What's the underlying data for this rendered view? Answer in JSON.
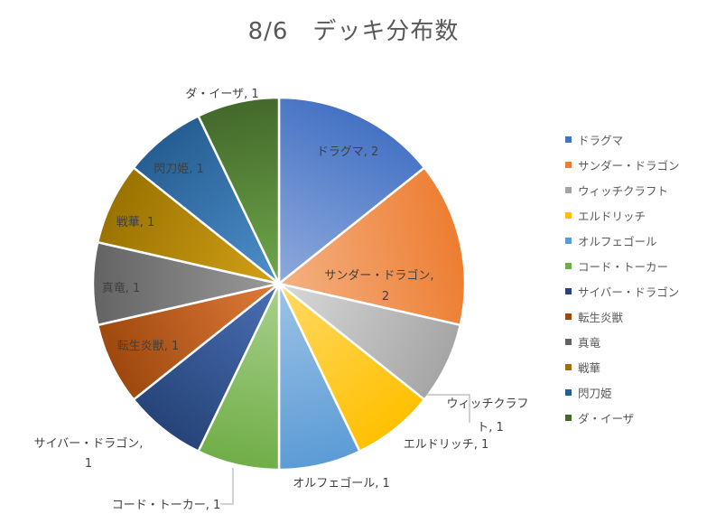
{
  "chart_data": {
    "type": "pie",
    "title": "8/6　デッキ分布数",
    "legend_position": "right",
    "slices": [
      {
        "name": "ドラグマ",
        "value": 2,
        "color": "#4472c4",
        "light": "#8faadc",
        "label": "ドラグマ, 2"
      },
      {
        "name": "サンダー・ドラゴン",
        "value": 2,
        "color": "#ed7d31",
        "light": "#f4b183",
        "label": "サンダー・ドラゴン,",
        "label2": "2"
      },
      {
        "name": "ウィッチクラフト",
        "value": 1,
        "color": "#a5a5a5",
        "light": "#d9d9d9",
        "label": "ウィッチクラフ",
        "label2": "ト, 1"
      },
      {
        "name": "エルドリッチ",
        "value": 1,
        "color": "#ffc000",
        "light": "#ffd966",
        "label": "エルドリッチ, 1"
      },
      {
        "name": "オルフェゴール",
        "value": 1,
        "color": "#5b9bd5",
        "light": "#9dc3e6",
        "label": "オルフェゴール, 1"
      },
      {
        "name": "コード・トーカー",
        "value": 1,
        "color": "#70ad47",
        "light": "#a9d18e",
        "label": "コード・トーカー, 1"
      },
      {
        "name": "サイバー・ドラゴン",
        "value": 1,
        "color": "#264478",
        "light": "#4a6fb5",
        "label": "サイバー・ドラゴン,",
        "label2": "1"
      },
      {
        "name": "転生炎獣",
        "value": 1,
        "color": "#9e480e",
        "light": "#e07b39",
        "label": "転生炎獣, 1"
      },
      {
        "name": "真竜",
        "value": 1,
        "color": "#636363",
        "light": "#9a9a9a",
        "label": "真竜, 1"
      },
      {
        "name": "戦華",
        "value": 1,
        "color": "#997300",
        "light": "#d4a017",
        "label": "戦華, 1"
      },
      {
        "name": "閃刀姫",
        "value": 1,
        "color": "#255e91",
        "light": "#4f8fcc",
        "label": "閃刀姫, 1"
      },
      {
        "name": "ダ・イーザ",
        "value": 1,
        "color": "#43682b",
        "light": "#6fa84a",
        "label": "ダ・イーザ, 1"
      }
    ]
  }
}
